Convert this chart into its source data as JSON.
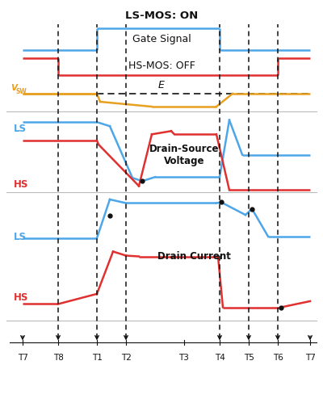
{
  "title_ls": "LS-MOS: ON",
  "label_gate": "Gate Signal",
  "label_hs_off": "HS-MOS: OFF",
  "label_dsv": "Drain-Source\nVoltage",
  "label_dc": "Drain Current",
  "label_e": "E",
  "label_vsw": "V",
  "label_vsw_sub": "SW",
  "label_ls": "LS",
  "label_hs": "HS",
  "time_labels": [
    "T7",
    "T8",
    "T1",
    "T2",
    "T3",
    "T4",
    "T5",
    "T6",
    "T7"
  ],
  "bg_color": "#ffffff",
  "blue": "#4da6e8",
  "red": "#e03030",
  "orange": "#e8a020",
  "black": "#111111",
  "gray": "#bbbbbb",
  "lw_signal": 1.8
}
